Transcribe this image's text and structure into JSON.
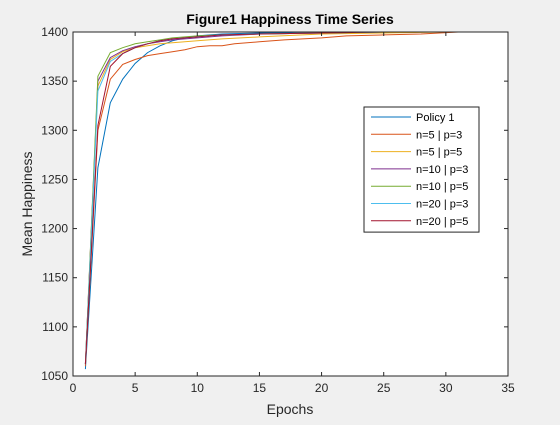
{
  "chart_data": {
    "type": "line",
    "title": "Figure1 Happiness Time Series",
    "xlabel": "Epochs",
    "ylabel": "Mean Happiness",
    "xlim": [
      0,
      35
    ],
    "ylim": [
      1050,
      1400
    ],
    "xticks": [
      0,
      5,
      10,
      15,
      20,
      25,
      30,
      35
    ],
    "yticks": [
      1050,
      1100,
      1150,
      1200,
      1250,
      1300,
      1350,
      1400
    ],
    "grid": false,
    "legend_position": "right",
    "series": [
      {
        "name": "Policy 1",
        "color": "#0072BD",
        "x": [
          1,
          2,
          3,
          4,
          5,
          6,
          7,
          8,
          9,
          10,
          12,
          15,
          20,
          25,
          30
        ],
        "y": [
          1057,
          1262,
          1328,
          1352,
          1368,
          1379,
          1386,
          1391,
          1394,
          1396,
          1398,
          1399,
          1400,
          1400,
          1400
        ]
      },
      {
        "name": "n=5 | p=3",
        "color": "#D95319",
        "x": [
          1,
          2,
          3,
          4,
          5,
          6,
          7,
          8,
          9,
          10,
          11,
          12,
          13,
          15,
          17,
          20,
          22,
          25,
          28,
          31
        ],
        "y": [
          1060,
          1300,
          1352,
          1367,
          1372,
          1376,
          1378,
          1380,
          1382,
          1385,
          1386,
          1386,
          1388,
          1390,
          1392,
          1394,
          1396,
          1397,
          1398,
          1400
        ]
      },
      {
        "name": "n=5 | p=5",
        "color": "#EDB120",
        "x": [
          1,
          2,
          3,
          4,
          5,
          6,
          7,
          8,
          10,
          12,
          15,
          20,
          25,
          30
        ],
        "y": [
          1062,
          1345,
          1372,
          1380,
          1384,
          1386,
          1388,
          1389,
          1391,
          1393,
          1395,
          1398,
          1399,
          1400
        ]
      },
      {
        "name": "n=10 | p=3",
        "color": "#7E2F8E",
        "x": [
          1,
          2,
          3,
          4,
          5,
          6,
          7,
          8,
          10,
          12,
          15,
          20,
          25,
          30
        ],
        "y": [
          1062,
          1350,
          1374,
          1381,
          1385,
          1388,
          1390,
          1392,
          1394,
          1396,
          1398,
          1399,
          1400,
          1400
        ]
      },
      {
        "name": "n=10 | p=5",
        "color": "#77AC30",
        "x": [
          1,
          2,
          3,
          4,
          5,
          6,
          7,
          8,
          10,
          12,
          15,
          20,
          25,
          30
        ],
        "y": [
          1062,
          1355,
          1379,
          1384,
          1388,
          1390,
          1392,
          1394,
          1396,
          1397,
          1398,
          1399,
          1400,
          1400
        ]
      },
      {
        "name": "n=20 | p=3",
        "color": "#4DBEEE",
        "x": [
          1,
          2,
          3,
          4,
          5,
          6,
          7,
          8,
          10,
          12,
          15,
          20,
          25,
          30
        ],
        "y": [
          1062,
          1340,
          1370,
          1378,
          1384,
          1388,
          1391,
          1393,
          1395,
          1397,
          1398,
          1399,
          1400,
          1400
        ]
      },
      {
        "name": "n=20 | p=5",
        "color": "#A2142F",
        "x": [
          1,
          2,
          3,
          4,
          5,
          6,
          7,
          8,
          10,
          12,
          15,
          20,
          25,
          30
        ],
        "y": [
          1062,
          1305,
          1365,
          1378,
          1384,
          1388,
          1391,
          1393,
          1395,
          1397,
          1398,
          1399,
          1400,
          1400
        ]
      }
    ]
  }
}
